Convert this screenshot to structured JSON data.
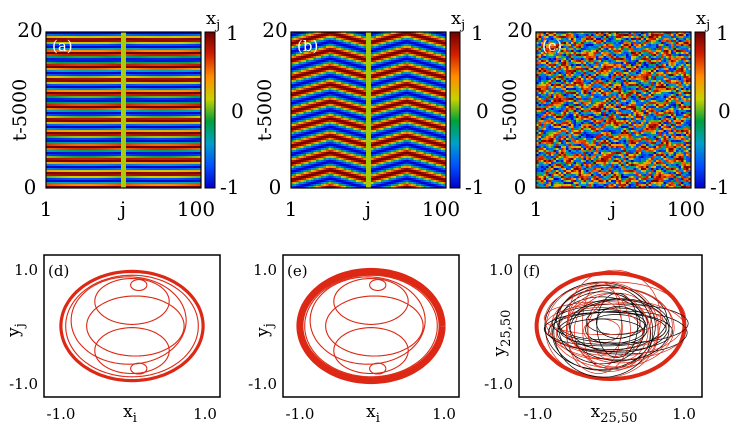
{
  "colorscale": [
    "#0000c8",
    "#0050ff",
    "#00a0c8",
    "#00a03c",
    "#c8d200",
    "#ff8c00",
    "#d21e00",
    "#6e0000"
  ],
  "line_color": "#dc2814",
  "chart_data": [
    {
      "type": "heatmap",
      "panel": "(a)",
      "pattern": "stripes",
      "xlabel": "j",
      "ylabel": "t-5000",
      "cbar_label": "x",
      "cbar_sub": "j",
      "x_ticks": [
        "1",
        "100"
      ],
      "y_ticks": [
        "0",
        "20"
      ],
      "cbar_ticks": [
        "1",
        "0",
        "-1"
      ],
      "xlim": [
        1,
        100
      ],
      "ylim": [
        0,
        20
      ],
      "zlim": [
        -1,
        1
      ]
    },
    {
      "type": "heatmap",
      "panel": "(b)",
      "pattern": "chevron",
      "xlabel": "j",
      "ylabel": "t-5000",
      "cbar_label": "x",
      "cbar_sub": "j",
      "x_ticks": [
        "1",
        "100"
      ],
      "y_ticks": [
        "0",
        "20"
      ],
      "cbar_ticks": [
        "1",
        "0",
        "-1"
      ],
      "xlim": [
        1,
        100
      ],
      "ylim": [
        0,
        20
      ],
      "zlim": [
        -1,
        1
      ]
    },
    {
      "type": "heatmap",
      "panel": "(c)",
      "pattern": "chaotic",
      "xlabel": "j",
      "ylabel": "t-5000",
      "cbar_label": "x",
      "cbar_sub": "j",
      "x_ticks": [
        "1",
        "100"
      ],
      "y_ticks": [
        "0",
        "20"
      ],
      "cbar_ticks": [
        "1",
        "0",
        "-1"
      ],
      "xlim": [
        1,
        100
      ],
      "ylim": [
        0,
        20
      ],
      "zlim": [
        -1,
        1
      ]
    },
    {
      "type": "line",
      "panel": "(d)",
      "xlabel": "x",
      "xlabel_sub": "i",
      "ylabel": "y",
      "ylabel_sub": "j",
      "x_ticks": [
        "-1.0",
        "1.0"
      ],
      "y_ticks": [
        "1.0",
        "-1.0"
      ],
      "xlim": [
        -1.3,
        1.3
      ],
      "ylim": [
        -1.3,
        1.3
      ]
    },
    {
      "type": "line",
      "panel": "(e)",
      "xlabel": "x",
      "xlabel_sub": "i",
      "ylabel": "y",
      "ylabel_sub": "j",
      "x_ticks": [
        "-1.0",
        "1.0"
      ],
      "y_ticks": [
        "1.0",
        "-1.0"
      ],
      "xlim": [
        -1.3,
        1.3
      ],
      "ylim": [
        -1.3,
        1.3
      ]
    },
    {
      "type": "line",
      "panel": "(f)",
      "xlabel": "x",
      "xlabel_sub": "25,50",
      "ylabel": "y",
      "ylabel_sub": "25,50",
      "x_ticks": [
        "-1.0",
        "1.0"
      ],
      "y_ticks": [
        "1.0",
        "-1.0"
      ],
      "xlim": [
        -1.3,
        1.3
      ],
      "ylim": [
        -1.3,
        1.3
      ]
    }
  ]
}
